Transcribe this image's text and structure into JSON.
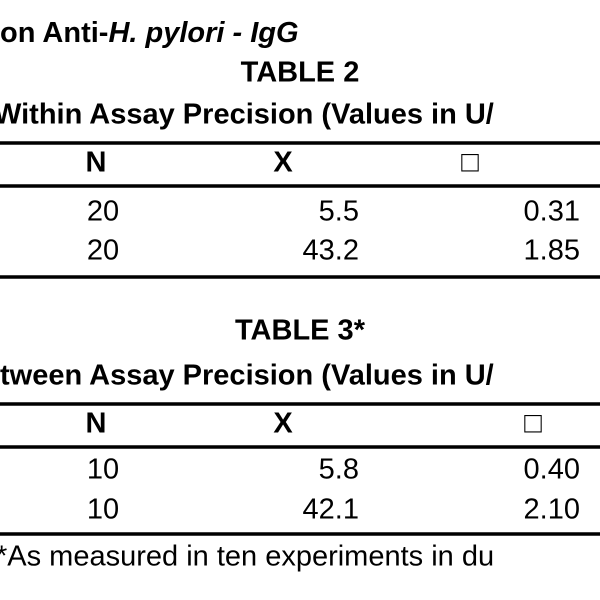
{
  "heading": {
    "prefix": "on Anti-",
    "italic": "H. pylori - IgG"
  },
  "tables": [
    {
      "title": "TABLE 2",
      "subtitle": "Within Assay Precision (Values in U/",
      "columns": [
        "N",
        "X",
        "□"
      ],
      "rows": [
        [
          "20",
          "5.5",
          "0.31"
        ],
        [
          "20",
          "43.2",
          "1.85"
        ]
      ]
    },
    {
      "title": "TABLE 3*",
      "subtitle": "tween Assay Precision (Values in U/",
      "columns": [
        "N",
        "X",
        "□"
      ],
      "rows": [
        [
          "10",
          "5.8",
          "0.40"
        ],
        [
          "10",
          "42.1",
          "2.10"
        ]
      ]
    }
  ],
  "footnote": "*As measured in ten experiments in du"
}
